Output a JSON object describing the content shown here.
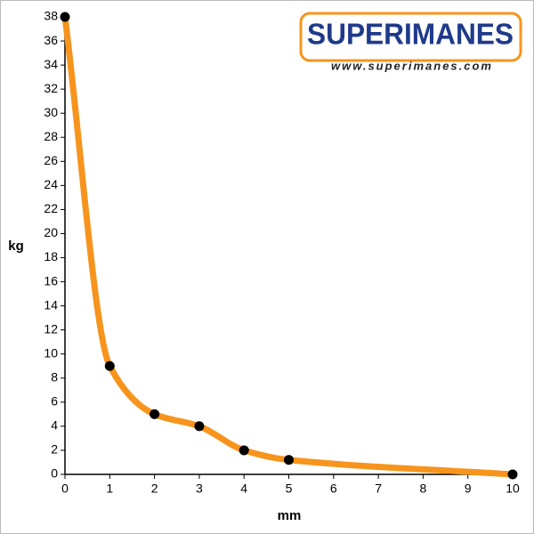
{
  "chart_data": {
    "type": "line",
    "x_label": "mm",
    "y_label": "kg",
    "annotations": [
      "SUPERIMANES",
      "www.superimanes.com"
    ],
    "x": [
      0,
      1,
      2,
      3,
      4,
      5,
      10
    ],
    "series": [
      {
        "name": "kg",
        "color": "#f7941d",
        "values": [
          38,
          9,
          5,
          4,
          2,
          1.2,
          0
        ]
      }
    ],
    "xlim": [
      0,
      10
    ],
    "xticks": [
      0,
      1,
      2,
      3,
      4,
      5,
      6,
      7,
      8,
      9,
      10
    ],
    "ylim": [
      0,
      38
    ],
    "yticks": [
      0,
      2,
      4,
      6,
      8,
      10,
      12,
      14,
      16,
      18,
      20,
      22,
      24,
      26,
      28,
      30,
      32,
      34,
      36,
      38
    ],
    "grid": false,
    "marker_color": "#000000"
  }
}
